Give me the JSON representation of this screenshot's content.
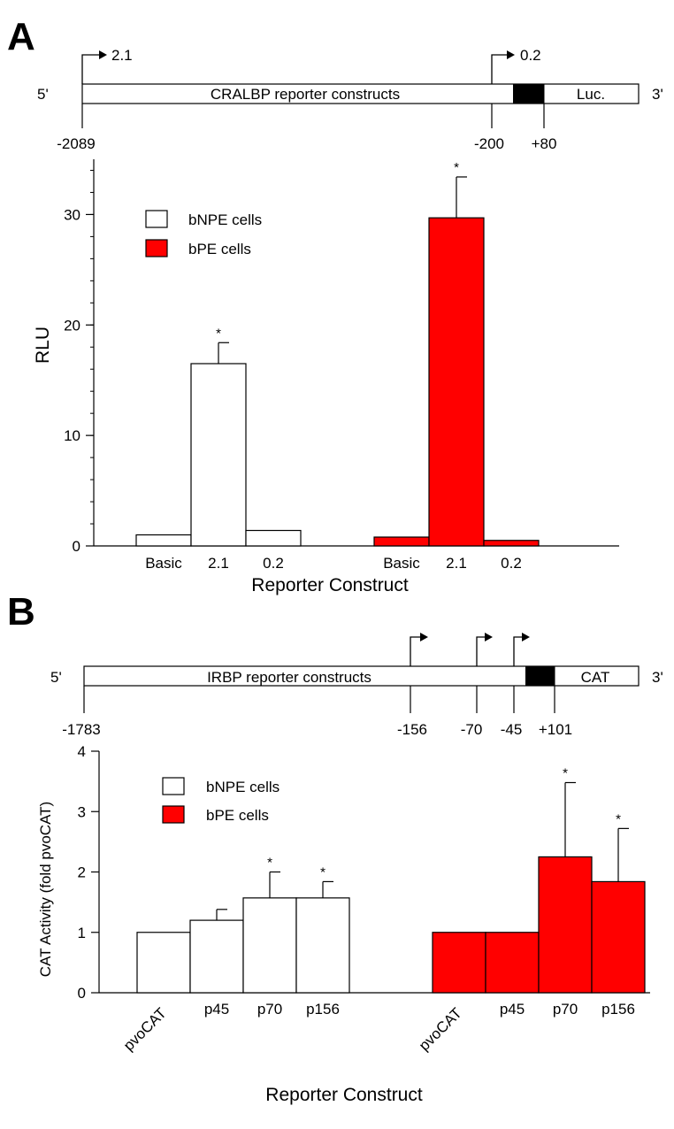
{
  "colors": {
    "bnpe_fill": "#ffffff",
    "bpe_fill": "#ff0000",
    "stroke": "#000000",
    "promoter_box": "#000000"
  },
  "panels": [
    {
      "letter": "A",
      "construct": {
        "left_end": "5'",
        "right_end": "3'",
        "name": "CRALBP reporter constructs",
        "reporter": "Luc.",
        "starts": [
          {
            "label": "2.1"
          },
          {
            "label": "0.2"
          }
        ],
        "positions": [
          "-2089",
          "-200",
          "+80"
        ]
      },
      "chart_data": {
        "type": "bar",
        "title": "",
        "xlabel": "Reporter Construct",
        "ylabel": "RLU",
        "ylim": [
          0,
          35
        ],
        "yticks": [
          "0",
          "10",
          "20",
          "30"
        ],
        "legend": [
          "bNPE cells",
          "bPE cells"
        ],
        "legend_position": "top-left",
        "categories": [
          "Basic",
          "2.1",
          "0.2"
        ],
        "series": [
          {
            "name": "bNPE cells",
            "values": [
              1.0,
              16.5,
              1.4
            ],
            "errors": [
              0,
              1.9,
              0
            ],
            "significant": [
              false,
              true,
              false
            ]
          },
          {
            "name": "bPE cells",
            "values": [
              0.8,
              29.7,
              0.5
            ],
            "errors": [
              0,
              3.7,
              0
            ],
            "significant": [
              false,
              true,
              false
            ]
          }
        ],
        "significance_marker": "*"
      }
    },
    {
      "letter": "B",
      "construct": {
        "left_end": "5'",
        "right_end": "3'",
        "name": "IRBP reporter constructs",
        "reporter": "CAT",
        "positions": [
          "-1783",
          "-156",
          "-70",
          "-45",
          "+101"
        ]
      },
      "chart_data": {
        "type": "bar",
        "title": "",
        "xlabel": "Reporter Construct",
        "ylabel": "CAT Activity (fold pvoCAT)",
        "ylim": [
          0,
          4
        ],
        "yticks": [
          "0",
          "1",
          "2",
          "3",
          "4"
        ],
        "legend": [
          "bNPE cells",
          "bPE cells"
        ],
        "legend_position": "top-left",
        "categories": [
          "pvoCAT",
          "p45",
          "p70",
          "p156"
        ],
        "series": [
          {
            "name": "bNPE cells",
            "values": [
              1.0,
              1.2,
              1.57,
              1.57
            ],
            "errors": [
              0,
              0.18,
              0.43,
              0.27
            ],
            "significant": [
              false,
              false,
              true,
              true
            ]
          },
          {
            "name": "bPE cells",
            "values": [
              1.0,
              1.0,
              2.25,
              1.84
            ],
            "errors": [
              0,
              0,
              1.23,
              0.88
            ],
            "significant": [
              false,
              false,
              true,
              true
            ]
          }
        ],
        "significance_marker": "*"
      }
    }
  ]
}
